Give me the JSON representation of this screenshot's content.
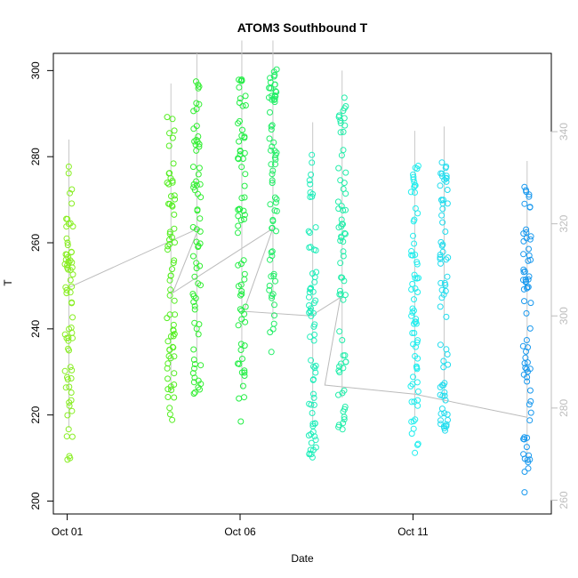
{
  "chart_data": {
    "type": "scatter",
    "title": "ATOM3 Southbound T",
    "xlabel": "Date",
    "ylabel": "T",
    "x_ticks": [
      {
        "value": 0,
        "label": "Oct 01"
      },
      {
        "value": 5,
        "label": "Oct 06"
      },
      {
        "value": 10,
        "label": "Oct 11"
      }
    ],
    "xlim": [
      -0.4,
      14.0
    ],
    "ylim": [
      197,
      304
    ],
    "y_ticks": [
      200,
      220,
      240,
      260,
      280,
      300
    ],
    "y2lim": [
      257,
      357
    ],
    "y2_ticks": [
      260,
      280,
      300,
      320,
      340
    ],
    "grid": false,
    "legend": "none",
    "point_style": "open circles colored by day (yellow-green to blue)",
    "passes": [
      {
        "x": 0.05,
        "ymin": 209,
        "ymax": 278,
        "color": "#88ee22"
      },
      {
        "x": 3.0,
        "ymin": 217,
        "ymax": 291,
        "color": "#55ee22"
      },
      {
        "x": 3.75,
        "ymin": 224,
        "ymax": 298,
        "color": "#33ee33"
      },
      {
        "x": 5.05,
        "ymin": 218,
        "ymax": 301,
        "color": "#22ee44"
      },
      {
        "x": 5.95,
        "ymin": 234,
        "ymax": 301,
        "color": "#22ee66"
      },
      {
        "x": 7.1,
        "ymin": 210,
        "ymax": 282,
        "color": "#22eebb"
      },
      {
        "x": 7.95,
        "ymin": 216,
        "ymax": 294,
        "color": "#22eeaa"
      },
      {
        "x": 10.05,
        "ymin": 211,
        "ymax": 280,
        "color": "#22eeee"
      },
      {
        "x": 10.9,
        "ymin": 215,
        "ymax": 281,
        "color": "#22ddee"
      },
      {
        "x": 13.3,
        "ymin": 201,
        "ymax": 273,
        "color": "#1a99ee"
      }
    ],
    "track_y2": [
      {
        "x": 0.0,
        "y": 306
      },
      {
        "x": 3.8,
        "y": 319
      },
      {
        "x": 3.05,
        "y": 305
      },
      {
        "x": 5.95,
        "y": 319
      },
      {
        "x": 5.1,
        "y": 301
      },
      {
        "x": 7.05,
        "y": 300
      },
      {
        "x": 7.9,
        "y": 304
      },
      {
        "x": 7.45,
        "y": 285
      },
      {
        "x": 10.05,
        "y": 283
      },
      {
        "x": 13.3,
        "y": 278
      }
    ],
    "line_color": "#bbbbbb"
  }
}
